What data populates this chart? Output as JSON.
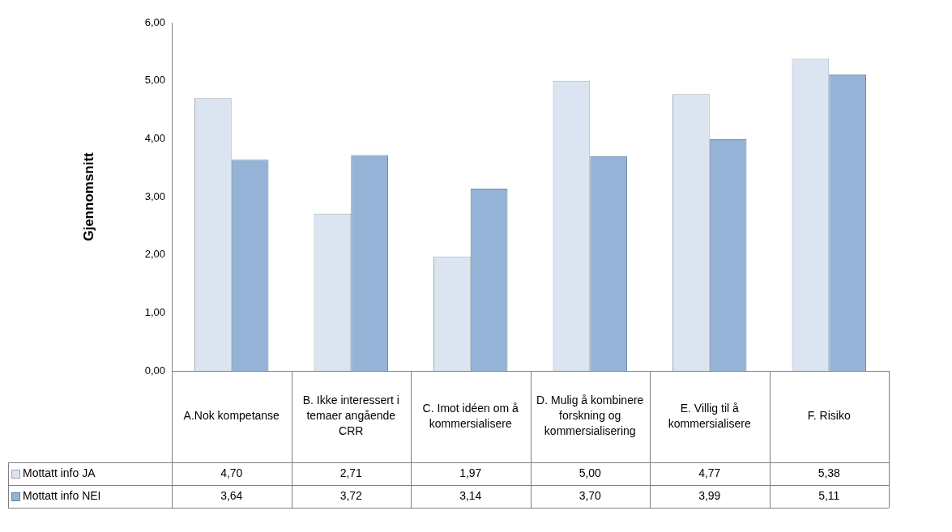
{
  "chart_data": {
    "type": "bar",
    "ylabel": "Gjennomsnitt",
    "categories": [
      "A.Nok kompetanse",
      "B. Ikke interessert i temaer angående CRR",
      "C. Imot idéen om å kommersialisere",
      "D. Mulig å kombinere forskning og kommersialisering",
      "E. Villig til å kommersialisere",
      "F. Risiko"
    ],
    "series": [
      {
        "name": "Mottatt info JA",
        "color": "#dbe5f1",
        "values": [
          4.7,
          2.71,
          1.97,
          5.0,
          4.77,
          5.38
        ],
        "value_labels": [
          "4,70",
          "2,71",
          "1,97",
          "5,00",
          "4,77",
          "5,38"
        ]
      },
      {
        "name": "Mottatt info NEI",
        "color": "#95b3d7",
        "values": [
          3.64,
          3.72,
          3.14,
          3.7,
          3.99,
          5.11
        ],
        "value_labels": [
          "3,64",
          "3,72",
          "3,14",
          "3,70",
          "3,99",
          "5,11"
        ]
      }
    ],
    "ylim": [
      0,
      6
    ],
    "yticks": [
      {
        "value": 0,
        "label": "0,00"
      },
      {
        "value": 1,
        "label": "1,00"
      },
      {
        "value": 2,
        "label": "2,00"
      },
      {
        "value": 3,
        "label": "3,00"
      },
      {
        "value": 4,
        "label": "4,00"
      },
      {
        "value": 5,
        "label": "5,00"
      },
      {
        "value": 6,
        "label": "6,00"
      }
    ],
    "grid": false,
    "legend": "bottom"
  }
}
